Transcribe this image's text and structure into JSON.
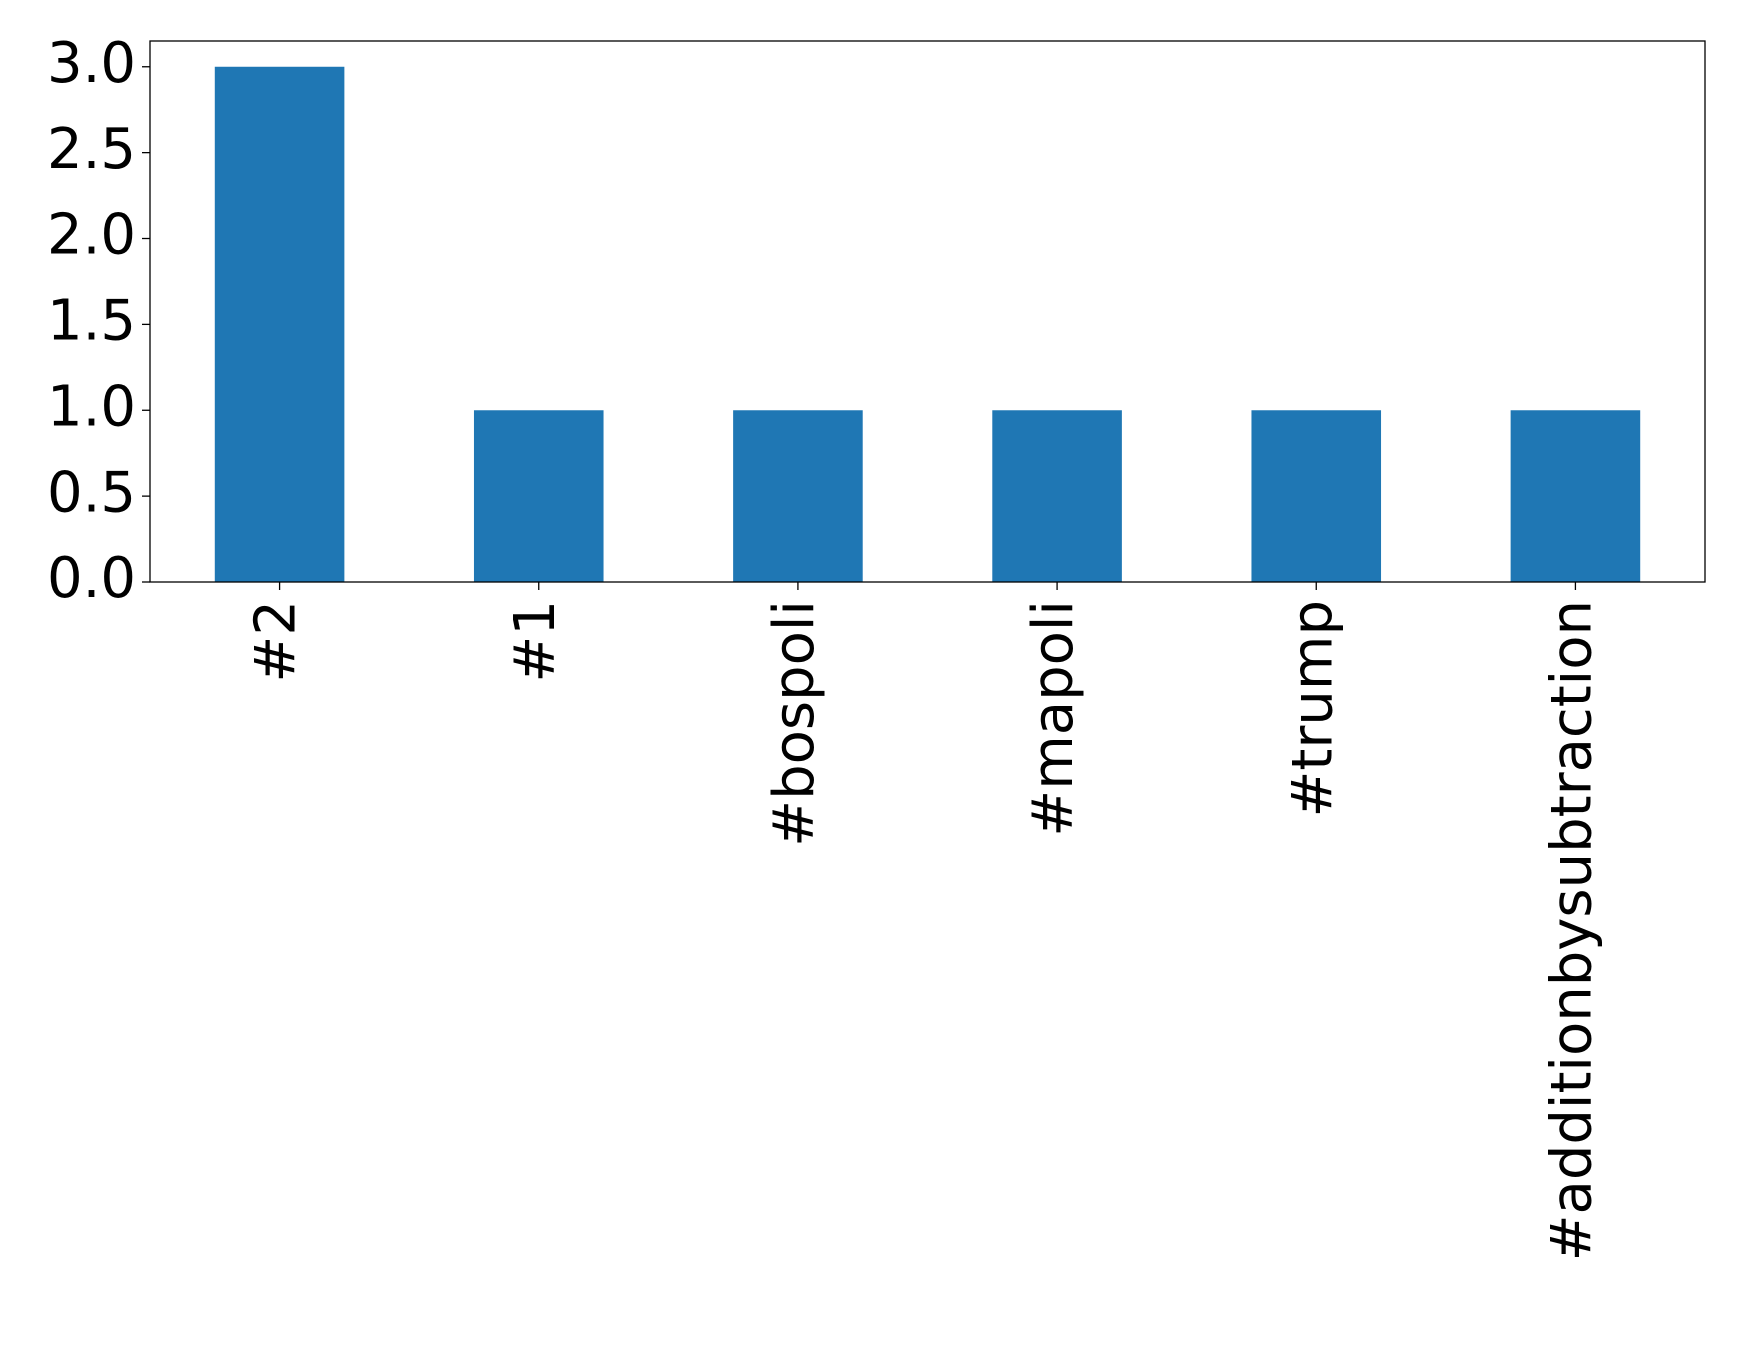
{
  "chart_data": {
    "type": "bar",
    "categories": [
      "#2",
      "#1",
      "#bospoli",
      "#mapoli",
      "#trump",
      "#additionbysubtraction"
    ],
    "values": [
      3,
      1,
      1,
      1,
      1,
      1
    ],
    "title": "",
    "xlabel": "",
    "ylabel": "",
    "ylim": [
      0,
      3.15
    ],
    "yticks": [
      "0.0",
      "0.5",
      "1.0",
      "1.5",
      "2.0",
      "2.5",
      "3.0"
    ],
    "grid": false,
    "bar_color": "#1f77b4"
  }
}
